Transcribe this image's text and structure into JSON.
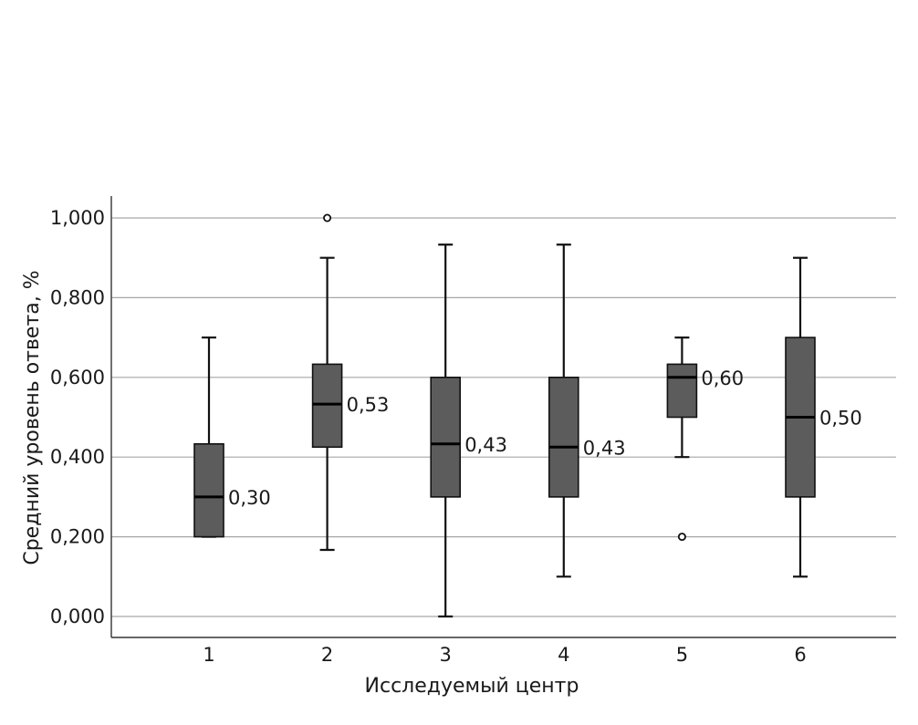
{
  "chart_data": {
    "type": "box",
    "title": "",
    "xlabel": "Исследуемый центр",
    "ylabel": "Средний уровень ответа, %",
    "ylim": [
      0,
      1
    ],
    "yticks": [
      {
        "value": 0.0,
        "label": "0,000"
      },
      {
        "value": 0.2,
        "label": "0,200"
      },
      {
        "value": 0.4,
        "label": "0,400"
      },
      {
        "value": 0.6,
        "label": "0,600"
      },
      {
        "value": 0.8,
        "label": "0,800"
      },
      {
        "value": 1.0,
        "label": "1,000"
      }
    ],
    "grid": true,
    "categories": [
      "1",
      "2",
      "3",
      "4",
      "5",
      "6"
    ],
    "boxes": [
      {
        "category": "1",
        "whisker_low": 0.2,
        "q1": 0.2,
        "median": 0.3,
        "q3": 0.433,
        "whisker_high": 0.7,
        "outliers": [],
        "median_label": "0,30"
      },
      {
        "category": "2",
        "whisker_low": 0.167,
        "q1": 0.425,
        "median": 0.533,
        "q3": 0.633,
        "whisker_high": 0.9,
        "outliers": [
          1.0
        ],
        "median_label": "0,53"
      },
      {
        "category": "3",
        "whisker_low": 0.0,
        "q1": 0.3,
        "median": 0.433,
        "q3": 0.6,
        "whisker_high": 0.933,
        "outliers": [],
        "median_label": "0,43"
      },
      {
        "category": "4",
        "whisker_low": 0.1,
        "q1": 0.3,
        "median": 0.425,
        "q3": 0.6,
        "whisker_high": 0.933,
        "outliers": [],
        "median_label": "0,43"
      },
      {
        "category": "5",
        "whisker_low": 0.4,
        "q1": 0.5,
        "median": 0.6,
        "q3": 0.633,
        "whisker_high": 0.7,
        "outliers": [
          0.2
        ],
        "median_label": "0,60"
      },
      {
        "category": "6",
        "whisker_low": 0.1,
        "q1": 0.3,
        "median": 0.5,
        "q3": 0.7,
        "whisker_high": 0.9,
        "outliers": [],
        "median_label": "0,50"
      }
    ],
    "box_color": "#5c5c5c",
    "line_color": "#111111",
    "grid_color": "#a6a6a6"
  }
}
